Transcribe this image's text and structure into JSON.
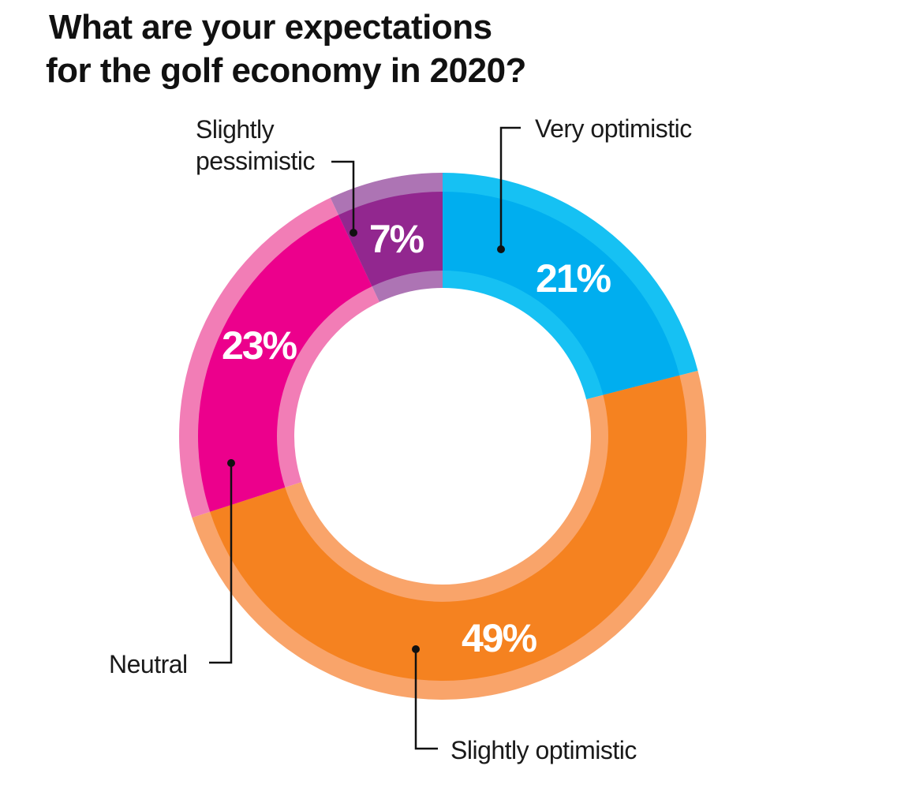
{
  "chart_data": {
    "type": "pie",
    "title_lines": [
      "What are your expectations",
      "for the golf economy in 2020?"
    ],
    "unit": "%",
    "slices": [
      {
        "label": "Very optimistic",
        "value": 21,
        "value_label": "21%",
        "color": "#00aeef",
        "rim_color": "#16c1f3"
      },
      {
        "label": "Slightly optimistic",
        "value": 49,
        "value_label": "49%",
        "color": "#f58220",
        "rim_color": "#f9a46a"
      },
      {
        "label": "Neutral",
        "value": 23,
        "value_label": "23%",
        "color": "#ec008c",
        "rim_color": "#f27db6"
      },
      {
        "label_lines": [
          "Slightly",
          "pessimistic"
        ],
        "value": 7,
        "value_label": "7%",
        "color": "#92278f",
        "rim_color": "#ad74b4"
      }
    ]
  }
}
